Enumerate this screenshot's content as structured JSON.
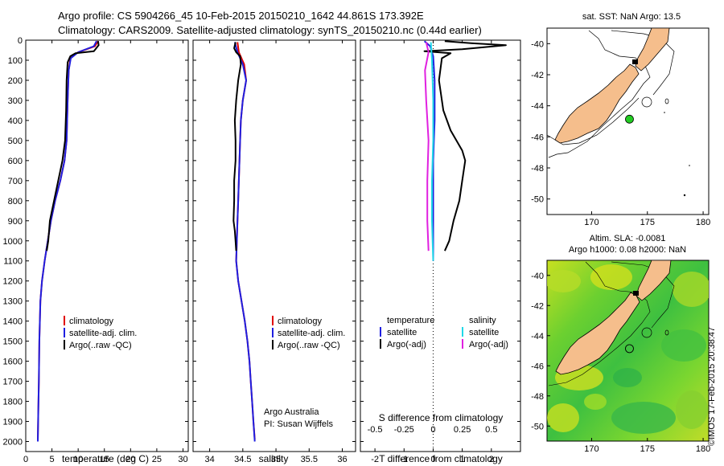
{
  "header": {
    "line1": "Argo profile: CS 5904266_45 10-Feb-2015 20150210_1642 44.861S 173.392E",
    "line2": "Climatology: CARS2009. Satellite-adjusted climatology: synTS_20150210.nc (0.44d earlier)"
  },
  "colors": {
    "climatology": "#e00000",
    "satellite": "#1f1fe0",
    "argo": "#000000",
    "sal_satellite": "#20d8e8",
    "sal_argo": "#e020e0",
    "land": "#f5be8c",
    "float_marker": "#22cc22"
  },
  "chart_data": [
    {
      "id": "temperature",
      "type": "line",
      "xlabel": "temperature (deg C)",
      "ylabel": "",
      "xlim": [
        0,
        31
      ],
      "ylim": [
        2050,
        0
      ],
      "xticks": [
        "0",
        "5",
        "10",
        "15",
        "20",
        "25",
        "30"
      ],
      "xtick_values": [
        0,
        5,
        10,
        15,
        20,
        25,
        30
      ],
      "yticks": [
        "0",
        "100",
        "200",
        "300",
        "400",
        "500",
        "600",
        "700",
        "800",
        "900",
        "1000",
        "1100",
        "1200",
        "1300",
        "1400",
        "1500",
        "1600",
        "1700",
        "1800",
        "1900",
        "2000"
      ],
      "ytick_values": [
        0,
        100,
        200,
        300,
        400,
        500,
        600,
        700,
        800,
        900,
        1000,
        1100,
        1200,
        1300,
        1400,
        1500,
        1600,
        1700,
        1800,
        1900,
        2000
      ],
      "legend": [
        "climatology",
        "satellite-adj. clim.",
        "Argo(..raw -QC)"
      ],
      "series": [
        {
          "name": "climatology",
          "color_key": "climatology",
          "points": [
            [
              13.8,
              5
            ],
            [
              13.2,
              30
            ],
            [
              10,
              60
            ],
            [
              8.5,
              90
            ],
            [
              8.2,
              150
            ],
            [
              8.0,
              300
            ],
            [
              7.8,
              500
            ],
            [
              7.4,
              600
            ],
            [
              6.6,
              700
            ],
            [
              5.6,
              800
            ],
            [
              4.8,
              900
            ],
            [
              4.2,
              1000
            ],
            [
              3.6,
              1100
            ],
            [
              3.1,
              1200
            ],
            [
              2.8,
              1300
            ],
            [
              2.6,
              1500
            ],
            [
              2.5,
              1700
            ],
            [
              2.4,
              1850
            ],
            [
              2.3,
              1990
            ]
          ]
        },
        {
          "name": "satellite-adj. clim.",
          "color_key": "satellite",
          "points": [
            [
              13.5,
              5
            ],
            [
              13.0,
              30
            ],
            [
              10,
              60
            ],
            [
              8.6,
              90
            ],
            [
              8.2,
              150
            ],
            [
              8.0,
              300
            ],
            [
              7.8,
              500
            ],
            [
              7.4,
              600
            ],
            [
              6.6,
              700
            ],
            [
              5.6,
              800
            ],
            [
              4.8,
              900
            ],
            [
              4.2,
              1000
            ],
            [
              3.6,
              1100
            ],
            [
              3.1,
              1200
            ],
            [
              2.8,
              1300
            ],
            [
              2.6,
              1500
            ],
            [
              2.5,
              1700
            ],
            [
              2.4,
              1850
            ],
            [
              2.3,
              2000
            ]
          ]
        },
        {
          "name": "Argo(..raw -QC)",
          "color_key": "argo",
          "points": [
            [
              13.8,
              5
            ],
            [
              13.9,
              25
            ],
            [
              13.0,
              55
            ],
            [
              9.5,
              65
            ],
            [
              8.5,
              80
            ],
            [
              8.0,
              110
            ],
            [
              7.8,
              200
            ],
            [
              7.7,
              350
            ],
            [
              7.5,
              500
            ],
            [
              7.0,
              600
            ],
            [
              6.2,
              700
            ],
            [
              5.4,
              800
            ],
            [
              4.6,
              900
            ],
            [
              4.3,
              1000
            ],
            [
              4.0,
              1050
            ]
          ]
        }
      ]
    },
    {
      "id": "salinity",
      "type": "line",
      "xlabel": "salinity",
      "xlim": [
        33.75,
        36.2
      ],
      "ylim": [
        2050,
        0
      ],
      "xticks": [
        "34",
        "34.5",
        "35",
        "35.5",
        "36"
      ],
      "xtick_values": [
        34,
        34.5,
        35,
        35.5,
        36
      ],
      "legend": [
        "climatology",
        "satellite-adj. clim.",
        "Argo(..raw -QC)"
      ],
      "footnote": [
        "Argo Australia",
        "PI: Susan Wijffels"
      ],
      "series": [
        {
          "name": "climatology",
          "color_key": "climatology",
          "points": [
            [
              34.42,
              10
            ],
            [
              34.44,
              60
            ],
            [
              34.52,
              120
            ],
            [
              34.55,
              200
            ],
            [
              34.5,
              300
            ],
            [
              34.47,
              400
            ],
            [
              34.46,
              500
            ],
            [
              34.45,
              600
            ],
            [
              34.44,
              700
            ],
            [
              34.43,
              800
            ],
            [
              34.42,
              900
            ],
            [
              34.41,
              1000
            ],
            [
              34.4,
              1100
            ],
            [
              34.43,
              1200
            ],
            [
              34.48,
              1300
            ],
            [
              34.53,
              1400
            ],
            [
              34.57,
              1500
            ],
            [
              34.6,
              1600
            ],
            [
              34.62,
              1700
            ],
            [
              34.64,
              1800
            ],
            [
              34.66,
              1900
            ],
            [
              34.68,
              1990
            ]
          ]
        },
        {
          "name": "satellite-adj. clim.",
          "color_key": "satellite",
          "points": [
            [
              34.38,
              10
            ],
            [
              34.42,
              60
            ],
            [
              34.5,
              120
            ],
            [
              34.55,
              200
            ],
            [
              34.5,
              300
            ],
            [
              34.47,
              400
            ],
            [
              34.46,
              500
            ],
            [
              34.45,
              600
            ],
            [
              34.44,
              700
            ],
            [
              34.43,
              800
            ],
            [
              34.42,
              900
            ],
            [
              34.41,
              1000
            ],
            [
              34.4,
              1100
            ],
            [
              34.43,
              1200
            ],
            [
              34.48,
              1300
            ],
            [
              34.53,
              1400
            ],
            [
              34.57,
              1500
            ],
            [
              34.6,
              1600
            ],
            [
              34.62,
              1700
            ],
            [
              34.64,
              1800
            ],
            [
              34.66,
              1900
            ],
            [
              34.68,
              2000
            ]
          ]
        },
        {
          "name": "Argo(..raw -QC)",
          "color_key": "argo",
          "points": [
            [
              34.39,
              10
            ],
            [
              34.37,
              40
            ],
            [
              34.4,
              60
            ],
            [
              34.46,
              80
            ],
            [
              34.47,
              120
            ],
            [
              34.43,
              200
            ],
            [
              34.4,
              300
            ],
            [
              34.38,
              400
            ],
            [
              34.39,
              500
            ],
            [
              34.39,
              600
            ],
            [
              34.37,
              700
            ],
            [
              34.37,
              800
            ],
            [
              34.36,
              900
            ],
            [
              34.38,
              950
            ],
            [
              34.39,
              1000
            ],
            [
              34.4,
              1050
            ]
          ]
        }
      ]
    },
    {
      "id": "difference",
      "type": "line",
      "xlabel": "T difference from climatology",
      "xlabel_top": "S difference from climatology",
      "xlim": [
        -2.5,
        3.0
      ],
      "ylim": [
        2050,
        0
      ],
      "xticks": [
        "-2",
        "-1",
        "0",
        "1",
        "2"
      ],
      "xtick_values": [
        -2,
        -1,
        0,
        1,
        2
      ],
      "xticks_top": [
        "-0.5",
        "-0.25",
        "0",
        "0.25",
        "0.5"
      ],
      "xtick_top_values": [
        -0.5,
        -0.25,
        0,
        0.25,
        0.5
      ],
      "legend_left_title": "temperature",
      "legend_right_title": "salinity",
      "legend_left": [
        "satellite",
        "Argo(-adj)"
      ],
      "legend_right": [
        "satellite",
        "Argo(-adj)"
      ],
      "series": [
        {
          "name": "temperature satellite",
          "color_key": "satellite",
          "points": [
            [
              -0.3,
              5
            ],
            [
              -0.1,
              30
            ],
            [
              0,
              80
            ],
            [
              0.05,
              200
            ],
            [
              0.05,
              400
            ],
            [
              0.0,
              600
            ],
            [
              0.0,
              800
            ],
            [
              0.0,
              1000
            ],
            [
              0.0,
              1100
            ]
          ]
        },
        {
          "name": "temperature Argo(-adj)",
          "color_key": "argo",
          "points": [
            [
              0.4,
              5
            ],
            [
              1.3,
              15
            ],
            [
              2.5,
              25
            ],
            [
              1.0,
              45
            ],
            [
              -0.3,
              55
            ],
            [
              0.6,
              65
            ],
            [
              0.3,
              90
            ],
            [
              0.2,
              200
            ],
            [
              0.35,
              350
            ],
            [
              0.6,
              450
            ],
            [
              0.8,
              500
            ],
            [
              1.0,
              550
            ],
            [
              1.1,
              600
            ],
            [
              1.0,
              700
            ],
            [
              0.9,
              800
            ],
            [
              0.7,
              900
            ],
            [
              0.55,
              1000
            ],
            [
              0.4,
              1050
            ]
          ]
        },
        {
          "name": "salinity satellite",
          "color_key": "sal_satellite",
          "points": [
            [
              -0.02,
              10
            ],
            [
              -0.01,
              100
            ],
            [
              0.0,
              300
            ],
            [
              0.0,
              500
            ],
            [
              -0.01,
              700
            ],
            [
              -0.01,
              900
            ],
            [
              0.0,
              1100
            ]
          ]
        },
        {
          "name": "salinity Argo(-adj)",
          "color_key": "sal_argo",
          "points": [
            [
              -0.06,
              10
            ],
            [
              -0.04,
              60
            ],
            [
              -0.07,
              150
            ],
            [
              -0.06,
              300
            ],
            [
              -0.04,
              500
            ],
            [
              -0.05,
              700
            ],
            [
              -0.05,
              900
            ],
            [
              -0.04,
              1050
            ]
          ]
        }
      ]
    }
  ],
  "map_top": {
    "title": "sat. SST: NaN Argo: 13.5",
    "xticks": [
      "170",
      "175",
      "180"
    ],
    "xtick_values": [
      170,
      175,
      180
    ],
    "yticks": [
      "-40",
      "-42",
      "-44",
      "-46",
      "-48",
      "-50"
    ],
    "ytick_values": [
      -40,
      -42,
      -44,
      -46,
      -48,
      -50
    ],
    "xlim": [
      166,
      180.5
    ],
    "ylim": [
      -51,
      -39
    ],
    "float_lon": 173.392,
    "float_lat": -44.861
  },
  "map_bottom": {
    "title_line1": "Altim. SLA: -0.0081",
    "title_line2": "Argo h1000: 0.08 h2000: NaN",
    "xticks": [
      "170",
      "175",
      "180"
    ],
    "xtick_values": [
      170,
      175,
      180
    ],
    "yticks": [
      "-40",
      "-42",
      "-44",
      "-46",
      "-48",
      "-50"
    ],
    "ytick_values": [
      -40,
      -42,
      -44,
      -46,
      -48,
      -50
    ],
    "xlim": [
      166,
      180.5
    ],
    "ylim": [
      -51,
      -39
    ],
    "float_lon": 173.392,
    "float_lat": -44.861
  },
  "side_stamp": "©IMOS 17-Feb-2015 20:38:47"
}
